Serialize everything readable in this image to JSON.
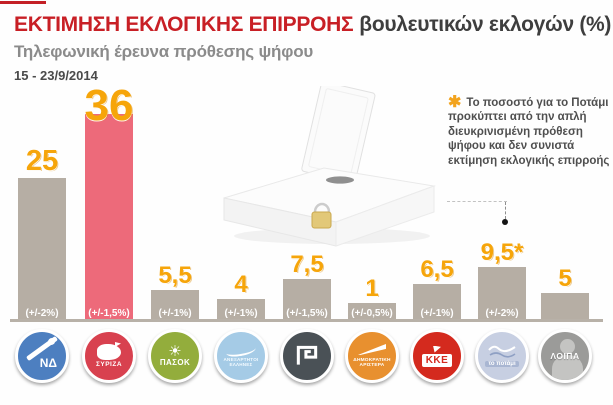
{
  "header": {
    "title_main": "ΕΚΤΙΜΗΣΗ ΕΚΛΟΓΙΚΗΣ ΕΠΙΡΡΟΗΣ",
    "title_suffix": "βουλευτικών εκλογών (%)",
    "subtitle": "Τηλεφωνική έρευνα πρόθεσης ψήφου",
    "date_range": "15 - 23/9/2014"
  },
  "note": {
    "asterisk": "✱",
    "text": "Το ποσοστό για το Ποτάμι προκύπτει από την απλή διευκρινισμένη πρόθεση ψήφου και δεν συνιστά εκτίμηση εκλογικής επιρροής"
  },
  "chart_data": {
    "type": "bar",
    "title": "ΕΚΤΙΜΗΣΗ ΕΚΛΟΓΙΚΗΣ ΕΠΙΡΡΟΗΣ βουλευτικών εκλογών (%)",
    "subtitle": "Τηλεφωνική έρευνα πρόθεσης ψήφου 15 - 23/9/2014",
    "xlabel": "",
    "ylabel": "",
    "ylim": [
      0,
      40
    ],
    "grid": false,
    "legend": "none",
    "categories": [
      "ΝΔ",
      "ΣΥΡΙΖΑ",
      "ΠΑΣΟΚ",
      "ΑΝΕΞΑΡΤΗΤΟΙ ΕΛΛΗΝΕΣ",
      "ΧΡΥΣΗ ΑΥΓΗ",
      "ΔΗΜΟΚΡΑΤΙΚΗ ΑΡΙΣΤΕΡΑ",
      "ΚΚΕ",
      "ΤΟ ΠΟΤΑΜΙ",
      "ΛΟΙΠΑ"
    ],
    "values": [
      25,
      36,
      5.5,
      4,
      7.5,
      1,
      6.5,
      9.5,
      5
    ],
    "value_labels": [
      "25",
      "36",
      "5,5",
      "4",
      "7,5",
      "1",
      "6,5",
      "9,5*",
      "5"
    ],
    "margins_of_error": [
      "(+/-2%)",
      "(+/-1,5%)",
      "(+/-1%)",
      "(+/-1%)",
      "(+/-1,5%)",
      "(+/-0,5%)",
      "(+/-1%)",
      "(+/-2%)",
      ""
    ],
    "bar_colors": [
      "#b6aea4",
      "#ed6a7a",
      "#b6aea4",
      "#b6aea4",
      "#b6aea4",
      "#b6aea4",
      "#b6aea4",
      "#b6aea4",
      "#b6aea4"
    ]
  },
  "parties": [
    {
      "name": "ΝΔ",
      "logo_text": "ΝΔ",
      "color": "#4d7fc0"
    },
    {
      "name": "ΣΥΡΙΖΑ",
      "logo_text": "ΣΥΡΙΖΑ",
      "color": "#d8414f"
    },
    {
      "name": "ΠΑΣΟΚ",
      "logo_text": "ΠΑΣΟΚ",
      "color": "#93ad3c"
    },
    {
      "name": "ΑΝΕΞΑΡΤΗΤΟΙ ΕΛΛΗΝΕΣ",
      "logo_text": "ΑΝΕΞΑΡΤΗΤΟΙ ΕΛΛΗΝΕΣ",
      "color": "#a5cbe6"
    },
    {
      "name": "ΧΡΥΣΗ ΑΥΓΗ",
      "logo_text": "",
      "color": "#4a5156"
    },
    {
      "name": "ΔΗΜΟΚΡΑΤΙΚΗ ΑΡΙΣΤΕΡΑ",
      "logo_text": "ΔΗΜΟΚΡΑΤΙΚΗ ΑΡΙΣΤΕΡΑ",
      "color": "#e8902f"
    },
    {
      "name": "ΚΚΕ",
      "logo_text": "KKE",
      "color": "#d42a1e"
    },
    {
      "name": "ΤΟ ΠΟΤΑΜΙ",
      "logo_text": "το ποτάμι",
      "color": "#c7cfe2"
    },
    {
      "name": "ΛΟΙΠΑ",
      "logo_text": "ΛΟΙΠΑ",
      "color": "#9b9b99"
    }
  ],
  "colors": {
    "title_red": "#c81f25",
    "value_orange": "#f6a50a",
    "bar_gray": "#b6aea4",
    "bar_highlight": "#ed6a7a",
    "baseline": "#b8b1a8"
  }
}
